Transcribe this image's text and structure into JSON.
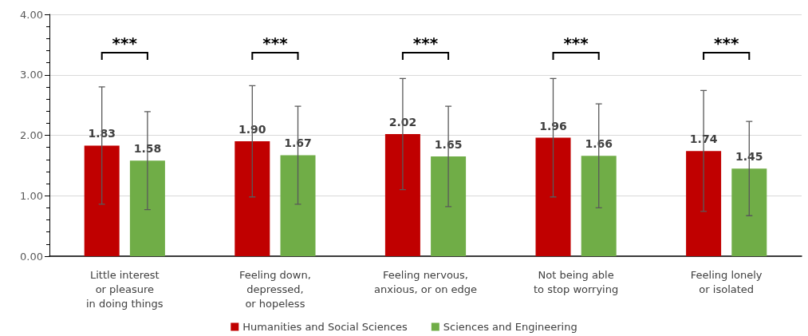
{
  "chart_data": {
    "type": "bar",
    "categories": [
      "Little interest\nor pleasure\nin doing things",
      "Feeling down,\ndepressed,\nor hopeless",
      "Feeling nervous,\nanxious, or on edge",
      "Not being able\nto stop worrying",
      "Feeling lonely\nor isolated"
    ],
    "series": [
      {
        "name": "Humanities and Social Sciences",
        "color": "#c00000",
        "values": [
          1.83,
          1.9,
          2.02,
          1.96,
          1.74
        ],
        "value_labels": [
          "1.83",
          "1.90",
          "2.02",
          "1.96",
          "1.74"
        ],
        "errors": [
          0.97,
          0.92,
          0.92,
          0.98,
          1.0
        ]
      },
      {
        "name": "Sciences and Engineering",
        "color": "#70ad47",
        "values": [
          1.58,
          1.67,
          1.65,
          1.66,
          1.45
        ],
        "value_labels": [
          "1.58",
          "1.67",
          "1.65",
          "1.66",
          "1.45"
        ],
        "errors": [
          0.81,
          0.81,
          0.83,
          0.86,
          0.78
        ]
      }
    ],
    "ylim": [
      0,
      4
    ],
    "yticks": [
      {
        "value": 0,
        "label": "0.00"
      },
      {
        "value": 1,
        "label": "1.00"
      },
      {
        "value": 2,
        "label": "2.00"
      },
      {
        "value": 3,
        "label": "3.00"
      },
      {
        "value": 4,
        "label": "4.00"
      }
    ],
    "grid": "y",
    "legend": "bottom",
    "annotations": [
      "***",
      "***",
      "***",
      "***",
      "***"
    ]
  }
}
